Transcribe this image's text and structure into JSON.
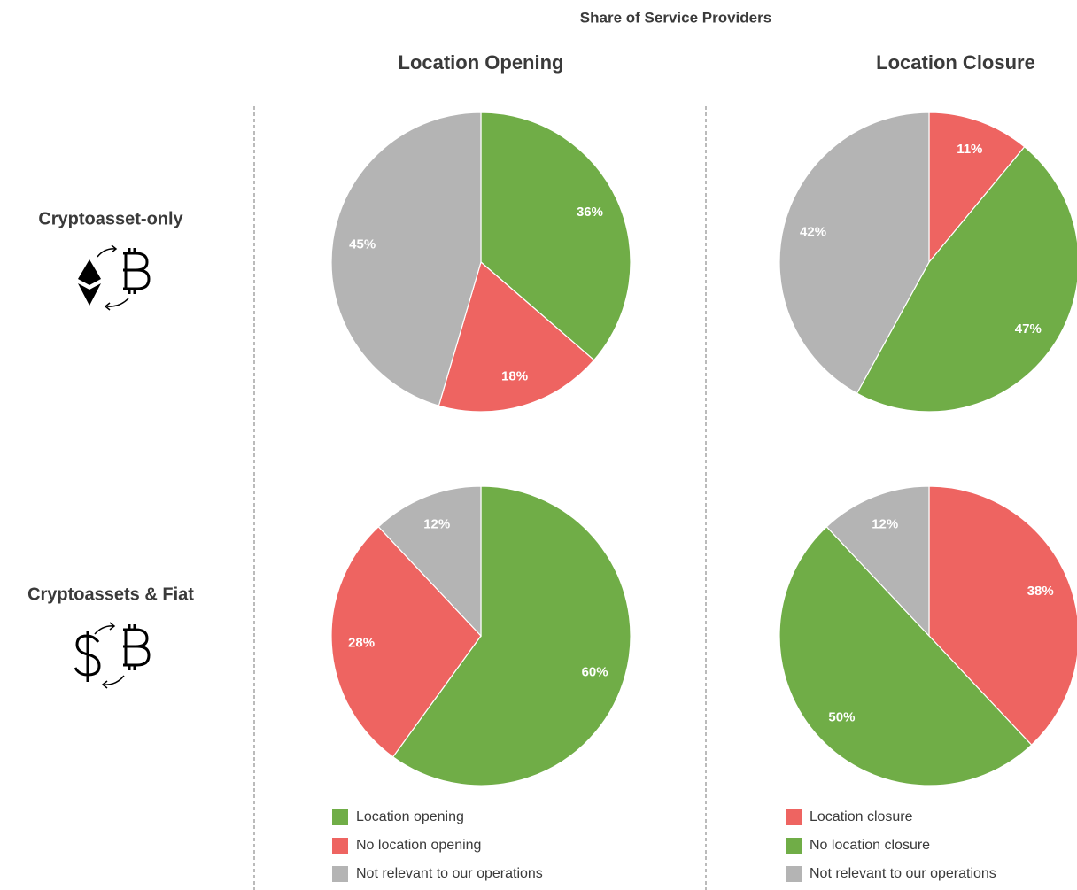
{
  "title": "Share of Service Providers",
  "columns": [
    "Location Opening",
    "Location Closure"
  ],
  "rows": [
    "Cryptoasset-only",
    "Cryptoassets & Fiat"
  ],
  "chart_data": [
    {
      "type": "pie",
      "categories": [
        "Location opening",
        "No location opening",
        "Not relevant to our operations"
      ],
      "values": [
        36,
        18,
        45
      ],
      "value_labels": [
        "36%",
        "18%",
        "45%"
      ],
      "colors": [
        "#70ad47",
        "#ee6461",
        "#b4b4b4"
      ]
    },
    {
      "type": "pie",
      "categories": [
        "Location closure",
        "No location closure",
        "Not relevant to our operations"
      ],
      "values": [
        11,
        47,
        42
      ],
      "value_labels": [
        "11%",
        "47%",
        "42%"
      ],
      "colors": [
        "#ee6461",
        "#70ad47",
        "#b4b4b4"
      ]
    },
    {
      "type": "pie",
      "categories": [
        "Location opening",
        "No location opening",
        "Not relevant to our operations"
      ],
      "values": [
        60,
        28,
        12
      ],
      "value_labels": [
        "60%",
        "28%",
        "12%"
      ],
      "colors": [
        "#70ad47",
        "#ee6461",
        "#b4b4b4"
      ]
    },
    {
      "type": "pie",
      "categories": [
        "Location closure",
        "No location closure",
        "Not relevant to our operations"
      ],
      "values": [
        38,
        50,
        12
      ],
      "value_labels": [
        "38%",
        "50%",
        "12%"
      ],
      "colors": [
        "#ee6461",
        "#70ad47",
        "#b4b4b4"
      ]
    }
  ]
}
